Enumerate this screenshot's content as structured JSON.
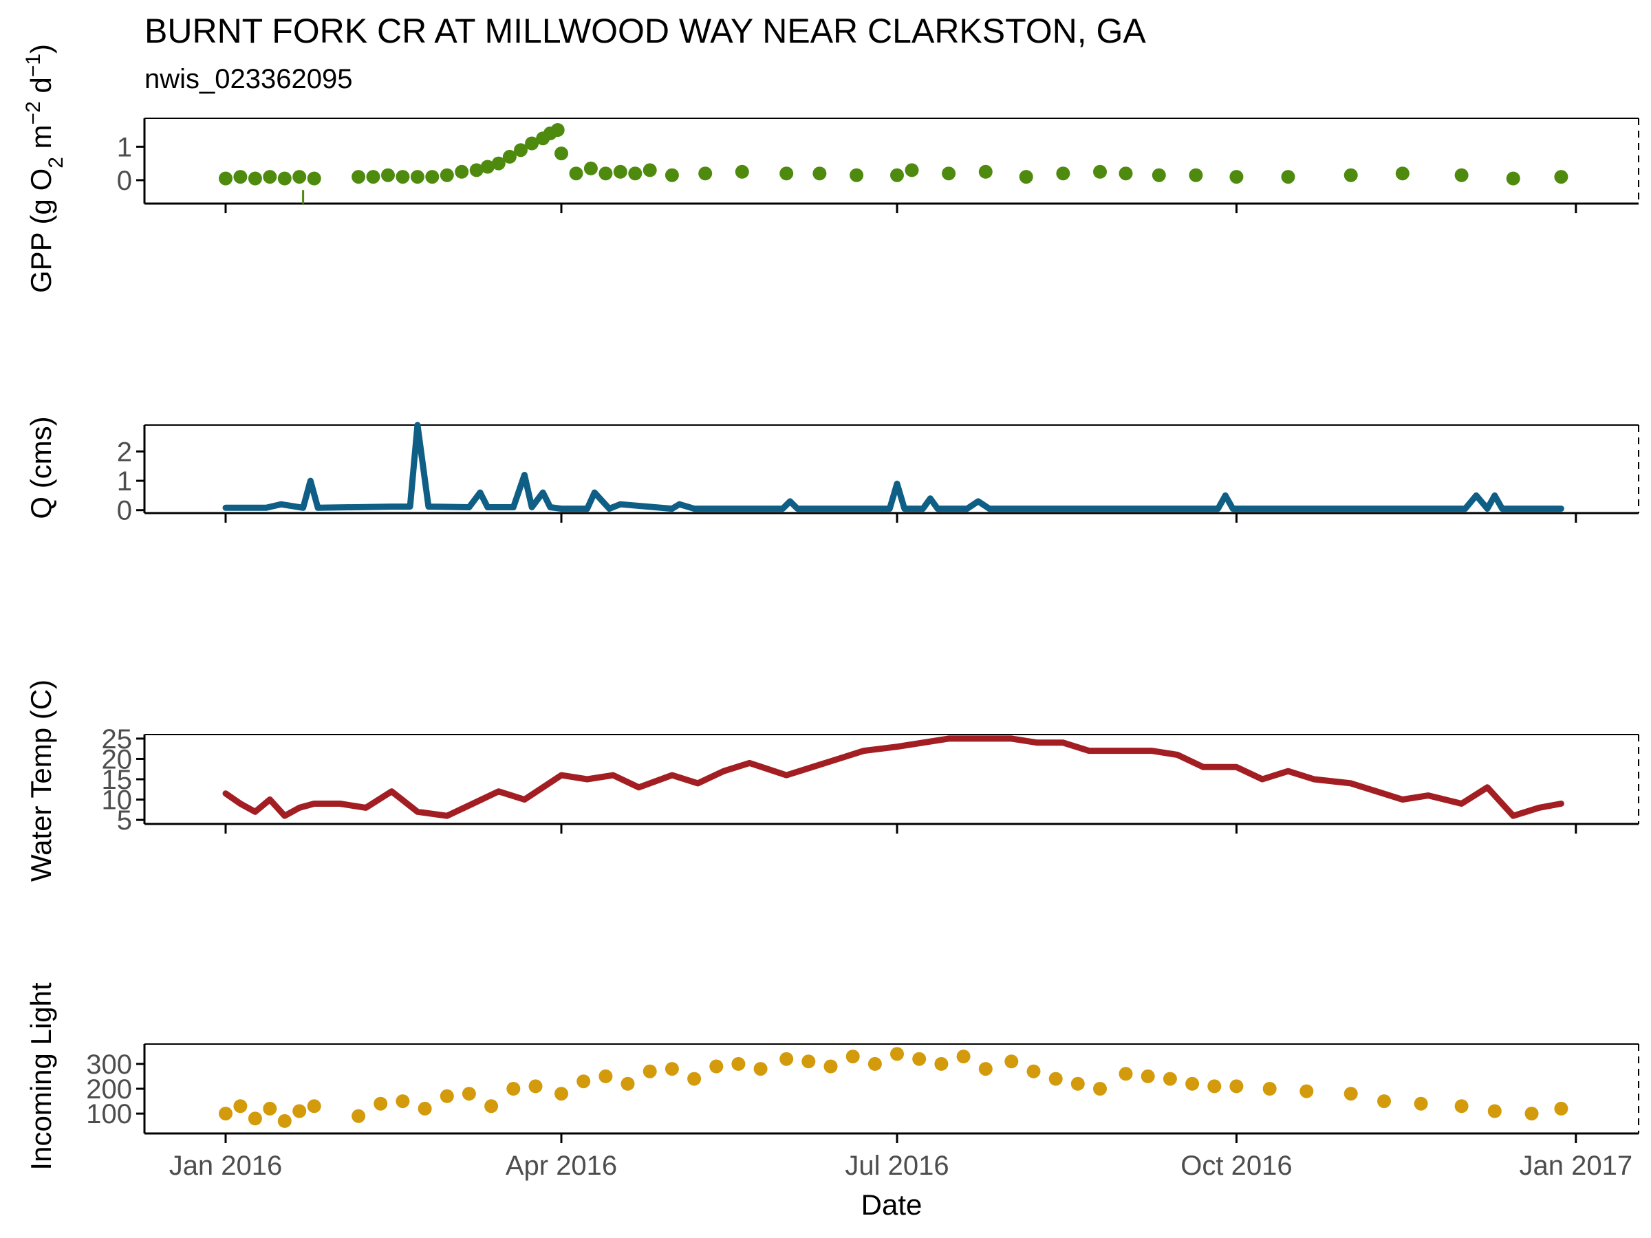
{
  "title": "BURNT FORK CR AT MILLWOOD WAY NEAR CLARKSTON, GA",
  "subtitle": "nwis_023362095",
  "colors": {
    "gpp": "#4e8a0e",
    "q": "#0e5e86",
    "temp": "#a31e22",
    "light": "#d39a0b",
    "axis": "#000000",
    "tick_text": "#4d4d4d"
  },
  "chart_data": [
    {
      "id": "gpp",
      "type": "scatter",
      "ylabel": "GPP (g  O2 m-2 d-1)",
      "ylabel_parts": {
        "main": "GPP (g  O",
        "sub": "2",
        "mid1": " m",
        "sup1": "−2",
        "mid2": " d",
        "sup2": "−1",
        "end": ")"
      },
      "ylim": [
        -0.7,
        1.85
      ],
      "yticks": [
        0,
        1
      ],
      "x": [
        "2016-01-01",
        "2016-01-05",
        "2016-01-09",
        "2016-01-13",
        "2016-01-17",
        "2016-01-21",
        "2016-01-25",
        "2016-02-06",
        "2016-02-10",
        "2016-02-14",
        "2016-02-18",
        "2016-02-22",
        "2016-02-26",
        "2016-03-01",
        "2016-03-05",
        "2016-03-09",
        "2016-03-12",
        "2016-03-15",
        "2016-03-18",
        "2016-03-21",
        "2016-03-24",
        "2016-03-27",
        "2016-03-29",
        "2016-03-31",
        "2016-04-01",
        "2016-04-05",
        "2016-04-09",
        "2016-04-13",
        "2016-04-17",
        "2016-04-21",
        "2016-04-25",
        "2016-05-01",
        "2016-05-10",
        "2016-05-20",
        "2016-06-01",
        "2016-06-10",
        "2016-06-20",
        "2016-07-01",
        "2016-07-05",
        "2016-07-15",
        "2016-07-25",
        "2016-08-05",
        "2016-08-15",
        "2016-08-25",
        "2016-09-01",
        "2016-09-10",
        "2016-09-20",
        "2016-10-01",
        "2016-10-15",
        "2016-11-01",
        "2016-11-15",
        "2016-12-01",
        "2016-12-15",
        "2016-12-28"
      ],
      "y": [
        0.05,
        0.1,
        0.05,
        0.1,
        0.05,
        0.1,
        0.05,
        0.1,
        0.1,
        0.15,
        0.1,
        0.1,
        0.1,
        0.15,
        0.25,
        0.3,
        0.4,
        0.5,
        0.7,
        0.9,
        1.1,
        1.25,
        1.4,
        1.5,
        0.8,
        0.2,
        0.35,
        0.2,
        0.25,
        0.2,
        0.3,
        0.15,
        0.2,
        0.25,
        0.2,
        0.2,
        0.15,
        0.15,
        0.3,
        0.2,
        0.25,
        0.1,
        0.2,
        0.25,
        0.2,
        0.15,
        0.15,
        0.1,
        0.1,
        0.15,
        0.2,
        0.15,
        0.05,
        0.1
      ],
      "minor_marks": [
        {
          "x": "2016-01-22",
          "y": -0.5
        }
      ]
    },
    {
      "id": "q",
      "type": "line",
      "ylabel": "Q (cms)",
      "ylim": [
        -0.1,
        2.9
      ],
      "yticks": [
        0,
        1,
        2
      ],
      "x": [
        "2016-01-01",
        "2016-01-12",
        "2016-01-16",
        "2016-01-22",
        "2016-01-24",
        "2016-01-26",
        "2016-02-15",
        "2016-02-20",
        "2016-02-22",
        "2016-02-25",
        "2016-03-07",
        "2016-03-10",
        "2016-03-12",
        "2016-03-19",
        "2016-03-22",
        "2016-03-24",
        "2016-03-27",
        "2016-03-29",
        "2016-04-01",
        "2016-04-08",
        "2016-04-10",
        "2016-04-14",
        "2016-04-17",
        "2016-05-01",
        "2016-05-03",
        "2016-05-07",
        "2016-05-31",
        "2016-06-02",
        "2016-06-04",
        "2016-06-29",
        "2016-07-01",
        "2016-07-03",
        "2016-07-08",
        "2016-07-10",
        "2016-07-12",
        "2016-07-20",
        "2016-07-23",
        "2016-07-26",
        "2016-08-10",
        "2016-09-01",
        "2016-09-26",
        "2016-09-28",
        "2016-09-30",
        "2016-11-01",
        "2016-12-02",
        "2016-12-05",
        "2016-12-08",
        "2016-12-10",
        "2016-12-12",
        "2016-12-28"
      ],
      "y": [
        0.08,
        0.08,
        0.2,
        0.08,
        1.0,
        0.08,
        0.12,
        0.12,
        2.9,
        0.12,
        0.1,
        0.6,
        0.1,
        0.1,
        1.2,
        0.1,
        0.6,
        0.1,
        0.05,
        0.05,
        0.6,
        0.05,
        0.2,
        0.05,
        0.2,
        0.05,
        0.05,
        0.3,
        0.05,
        0.05,
        0.9,
        0.05,
        0.05,
        0.4,
        0.05,
        0.05,
        0.3,
        0.05,
        0.05,
        0.05,
        0.05,
        0.5,
        0.05,
        0.05,
        0.05,
        0.5,
        0.05,
        0.5,
        0.05,
        0.05
      ]
    },
    {
      "id": "temp",
      "type": "line",
      "ylabel": "Water Temp (C)",
      "ylim": [
        4,
        26
      ],
      "yticks": [
        5,
        10,
        15,
        20,
        25
      ],
      "x": [
        "2016-01-01",
        "2016-01-05",
        "2016-01-09",
        "2016-01-13",
        "2016-01-17",
        "2016-01-21",
        "2016-01-25",
        "2016-02-01",
        "2016-02-08",
        "2016-02-15",
        "2016-02-22",
        "2016-03-01",
        "2016-03-08",
        "2016-03-15",
        "2016-03-22",
        "2016-04-01",
        "2016-04-08",
        "2016-04-15",
        "2016-04-22",
        "2016-05-01",
        "2016-05-08",
        "2016-05-15",
        "2016-05-22",
        "2016-06-01",
        "2016-06-08",
        "2016-06-15",
        "2016-06-22",
        "2016-07-01",
        "2016-07-08",
        "2016-07-15",
        "2016-07-22",
        "2016-08-01",
        "2016-08-08",
        "2016-08-15",
        "2016-08-22",
        "2016-09-01",
        "2016-09-08",
        "2016-09-15",
        "2016-09-22",
        "2016-10-01",
        "2016-10-08",
        "2016-10-15",
        "2016-10-22",
        "2016-11-01",
        "2016-11-08",
        "2016-11-15",
        "2016-11-22",
        "2016-12-01",
        "2016-12-08",
        "2016-12-15",
        "2016-12-22",
        "2016-12-28"
      ],
      "y": [
        11.5,
        9,
        7,
        10,
        6,
        8,
        9,
        9,
        8,
        12,
        7,
        6,
        9,
        12,
        10,
        16,
        15,
        16,
        13,
        16,
        14,
        17,
        19,
        16,
        18,
        20,
        22,
        23,
        24,
        25,
        25,
        25,
        24,
        24,
        22,
        22,
        22,
        21,
        18,
        18,
        15,
        17,
        15,
        14,
        12,
        10,
        11,
        9,
        13,
        6,
        8,
        9
      ]
    },
    {
      "id": "light",
      "type": "scatter",
      "ylabel": "Incoming Light",
      "ylim": [
        20,
        380
      ],
      "yticks": [
        100,
        200,
        300
      ],
      "x": [
        "2016-01-01",
        "2016-01-05",
        "2016-01-09",
        "2016-01-13",
        "2016-01-17",
        "2016-01-21",
        "2016-01-25",
        "2016-02-06",
        "2016-02-12",
        "2016-02-18",
        "2016-02-24",
        "2016-03-01",
        "2016-03-07",
        "2016-03-13",
        "2016-03-19",
        "2016-03-25",
        "2016-04-01",
        "2016-04-07",
        "2016-04-13",
        "2016-04-19",
        "2016-04-25",
        "2016-05-01",
        "2016-05-07",
        "2016-05-13",
        "2016-05-19",
        "2016-05-25",
        "2016-06-01",
        "2016-06-07",
        "2016-06-13",
        "2016-06-19",
        "2016-06-25",
        "2016-07-01",
        "2016-07-07",
        "2016-07-13",
        "2016-07-19",
        "2016-07-25",
        "2016-08-01",
        "2016-08-07",
        "2016-08-13",
        "2016-08-19",
        "2016-08-25",
        "2016-09-01",
        "2016-09-07",
        "2016-09-13",
        "2016-09-19",
        "2016-09-25",
        "2016-10-01",
        "2016-10-10",
        "2016-10-20",
        "2016-11-01",
        "2016-11-10",
        "2016-11-20",
        "2016-12-01",
        "2016-12-10",
        "2016-12-20",
        "2016-12-28"
      ],
      "y": [
        100,
        130,
        80,
        120,
        70,
        110,
        130,
        90,
        140,
        150,
        120,
        170,
        180,
        130,
        200,
        210,
        180,
        230,
        250,
        220,
        270,
        280,
        240,
        290,
        300,
        280,
        320,
        310,
        290,
        330,
        300,
        340,
        320,
        300,
        330,
        280,
        310,
        270,
        240,
        220,
        200,
        260,
        250,
        240,
        220,
        210,
        210,
        200,
        190,
        180,
        150,
        140,
        130,
        110,
        100,
        120
      ]
    }
  ],
  "xaxis": {
    "label": "Date",
    "ticks": [
      "Jan 2016",
      "Apr 2016",
      "Jul 2016",
      "Oct 2016",
      "Jan 2017"
    ],
    "tick_dates": [
      "2016-01-01",
      "2016-04-01",
      "2016-07-01",
      "2016-10-01",
      "2017-01-01"
    ],
    "range": [
      "2015-12-10",
      "2017-01-18"
    ]
  }
}
